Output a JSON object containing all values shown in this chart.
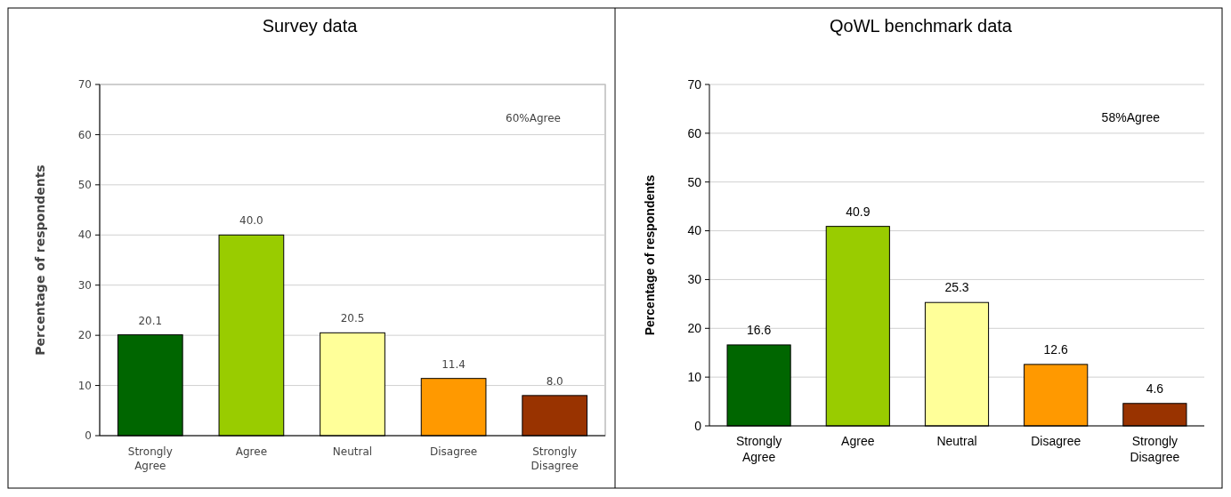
{
  "chart_data": [
    {
      "type": "bar",
      "title": "Survey data",
      "ylabel": "Percentage of respondents",
      "categories": [
        "Strongly Agree",
        "Agree",
        "Neutral",
        "Disagree",
        "Strongly Disagree"
      ],
      "values": [
        20.1,
        40.0,
        20.5,
        11.4,
        8.0
      ],
      "value_labels": [
        "20.1",
        "40.0",
        "20.5",
        "11.4",
        "8.0"
      ],
      "colors": [
        "#006600",
        "#99cc00",
        "#ffff99",
        "#ff9900",
        "#993300"
      ],
      "ylim": [
        0,
        70
      ],
      "yticks": [
        0,
        10,
        20,
        30,
        40,
        50,
        60,
        70
      ],
      "grid": "y",
      "annotations": [
        "60%Agree"
      ]
    },
    {
      "type": "bar",
      "title": "QoWL benchmark data",
      "ylabel": "Percentage of respondents",
      "categories": [
        "Strongly Agree",
        "Agree",
        "Neutral",
        "Disagree",
        "Strongly Disagree"
      ],
      "values": [
        16.6,
        40.9,
        25.3,
        12.6,
        4.6
      ],
      "value_labels": [
        "16.6",
        "40.9",
        "25.3",
        "12.6",
        "4.6"
      ],
      "colors": [
        "#006600",
        "#99cc00",
        "#ffff99",
        "#ff9900",
        "#993300"
      ],
      "ylim": [
        0,
        70
      ],
      "yticks": [
        0,
        10,
        20,
        30,
        40,
        50,
        60,
        70
      ],
      "grid": "y",
      "annotations": [
        "58%Agree"
      ]
    }
  ]
}
